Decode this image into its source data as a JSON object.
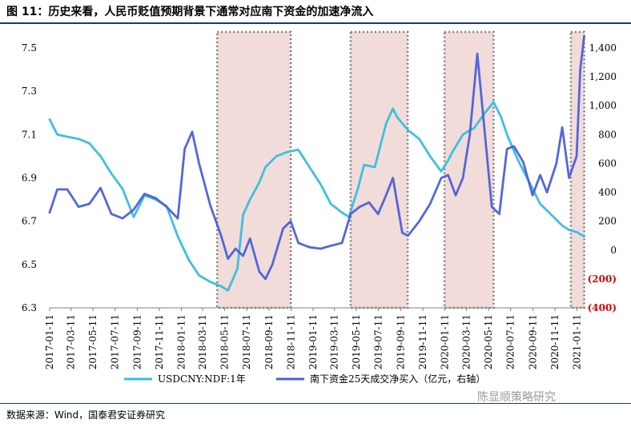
{
  "header": {
    "title": "图 11：历史来看，人民币贬值预期背景下通常对应南下资金的加速净流入"
  },
  "footer": {
    "source": "数据来源：Wind，国泰君安证券研究",
    "watermark": "陈显顺策略研究"
  },
  "colors": {
    "usdcny": "#33bde0",
    "southbound": "#4a5fd8",
    "band_fill": "#f2dcd9",
    "band_border": "#7f7f7f",
    "negative_tick": "#e00000",
    "rule": "#1a3a6b"
  },
  "chart_data": {
    "type": "line",
    "title": "",
    "xlabel": "",
    "ylabel": "",
    "x_tick_labels": [
      "2017-01-11",
      "2017-03-11",
      "2017-05-11",
      "2017-07-11",
      "2017-09-11",
      "2017-11-11",
      "2018-01-11",
      "2018-03-11",
      "2018-05-11",
      "2018-07-11",
      "2018-09-11",
      "2018-11-11",
      "2019-01-11",
      "2019-03-11",
      "2019-05-11",
      "2019-07-11",
      "2019-09-11",
      "2019-11-11",
      "2020-01-11",
      "2020-03-11",
      "2020-05-11",
      "2020-07-11",
      "2020-09-11",
      "2020-11-11",
      "2021-01-11"
    ],
    "left_axis": {
      "ylim": [
        6.3,
        7.5
      ],
      "ticks": [
        "6.3",
        "6.5",
        "6.7",
        "6.9",
        "7.1",
        "7.3",
        "7.5"
      ]
    },
    "right_axis": {
      "ylim": [
        -400,
        1400
      ],
      "ticks": [
        "(400)",
        "(200)",
        "0",
        "200",
        "400",
        "600",
        "800",
        "1,000",
        "1,200",
        "1,400"
      ]
    },
    "shaded_periods": [
      [
        "2018-04-20",
        "2018-11-10"
      ],
      [
        "2019-04-25",
        "2019-09-30"
      ],
      [
        "2020-01-10",
        "2020-05-25"
      ],
      [
        "2020-12-25",
        "2021-01-31"
      ]
    ],
    "legend": {
      "position": "bottom"
    },
    "series": [
      {
        "name": "USDCNY:NDF:1年",
        "axis": "left",
        "x": [
          "2017-01-11",
          "2017-02-01",
          "2017-03-01",
          "2017-04-01",
          "2017-05-01",
          "2017-06-01",
          "2017-07-01",
          "2017-08-01",
          "2017-09-01",
          "2017-10-01",
          "2017-11-01",
          "2017-12-01",
          "2018-01-01",
          "2018-02-01",
          "2018-03-01",
          "2018-04-01",
          "2018-05-01",
          "2018-05-20",
          "2018-06-15",
          "2018-07-01",
          "2018-07-20",
          "2018-08-15",
          "2018-09-01",
          "2018-10-01",
          "2018-11-01",
          "2018-12-01",
          "2019-01-01",
          "2019-02-01",
          "2019-03-01",
          "2019-04-01",
          "2019-04-20",
          "2019-05-15",
          "2019-06-01",
          "2019-07-01",
          "2019-08-01",
          "2019-08-20",
          "2019-09-01",
          "2019-10-01",
          "2019-11-01",
          "2019-12-01",
          "2020-01-01",
          "2020-01-20",
          "2020-02-01",
          "2020-03-01",
          "2020-03-20",
          "2020-04-01",
          "2020-05-01",
          "2020-05-25",
          "2020-06-15",
          "2020-07-01",
          "2020-08-01",
          "2020-09-01",
          "2020-10-01",
          "2020-11-01",
          "2020-12-01",
          "2020-12-20",
          "2021-01-10",
          "2021-01-31"
        ],
        "values": [
          7.17,
          7.1,
          7.09,
          7.08,
          7.06,
          7.0,
          6.92,
          6.85,
          6.72,
          6.82,
          6.8,
          6.77,
          6.63,
          6.52,
          6.45,
          6.42,
          6.4,
          6.38,
          6.48,
          6.73,
          6.8,
          6.88,
          6.95,
          7.0,
          7.02,
          7.03,
          6.95,
          6.87,
          6.78,
          6.74,
          6.72,
          6.85,
          6.96,
          6.95,
          7.15,
          7.22,
          7.18,
          7.12,
          7.08,
          7.0,
          6.93,
          6.98,
          7.02,
          7.1,
          7.12,
          7.13,
          7.2,
          7.25,
          7.18,
          7.1,
          6.98,
          6.88,
          6.78,
          6.73,
          6.68,
          6.66,
          6.65,
          6.63
        ]
      },
      {
        "name": "南下资金25天成交净买入（亿元，右轴）",
        "axis": "right",
        "x": [
          "2017-01-11",
          "2017-02-01",
          "2017-03-01",
          "2017-04-01",
          "2017-05-01",
          "2017-06-01",
          "2017-07-01",
          "2017-08-01",
          "2017-09-01",
          "2017-10-01",
          "2017-11-01",
          "2017-12-01",
          "2018-01-01",
          "2018-01-20",
          "2018-02-10",
          "2018-03-01",
          "2018-04-01",
          "2018-05-01",
          "2018-05-20",
          "2018-06-10",
          "2018-07-01",
          "2018-07-20",
          "2018-08-15",
          "2018-09-01",
          "2018-09-20",
          "2018-10-20",
          "2018-11-10",
          "2018-12-01",
          "2019-01-01",
          "2019-02-01",
          "2019-03-01",
          "2019-04-01",
          "2019-04-25",
          "2019-05-20",
          "2019-06-15",
          "2019-07-10",
          "2019-08-01",
          "2019-08-20",
          "2019-09-15",
          "2019-10-01",
          "2019-11-01",
          "2019-12-01",
          "2020-01-01",
          "2020-01-20",
          "2020-02-10",
          "2020-03-01",
          "2020-03-20",
          "2020-04-10",
          "2020-05-01",
          "2020-05-20",
          "2020-06-10",
          "2020-07-01",
          "2020-07-20",
          "2020-08-15",
          "2020-09-10",
          "2020-10-01",
          "2020-10-20",
          "2020-11-15",
          "2020-12-01",
          "2020-12-20",
          "2021-01-10",
          "2021-01-20",
          "2021-01-31"
        ],
        "values": [
          260,
          420,
          420,
          300,
          320,
          430,
          250,
          220,
          280,
          390,
          360,
          300,
          220,
          700,
          820,
          600,
          310,
          100,
          -60,
          10,
          -40,
          80,
          -150,
          -200,
          -100,
          150,
          200,
          50,
          20,
          10,
          30,
          50,
          250,
          300,
          330,
          250,
          380,
          500,
          120,
          100,
          200,
          320,
          500,
          520,
          380,
          500,
          800,
          1360,
          800,
          300,
          250,
          700,
          720,
          610,
          380,
          520,
          400,
          600,
          850,
          500,
          650,
          1250,
          1480
        ]
      }
    ]
  }
}
